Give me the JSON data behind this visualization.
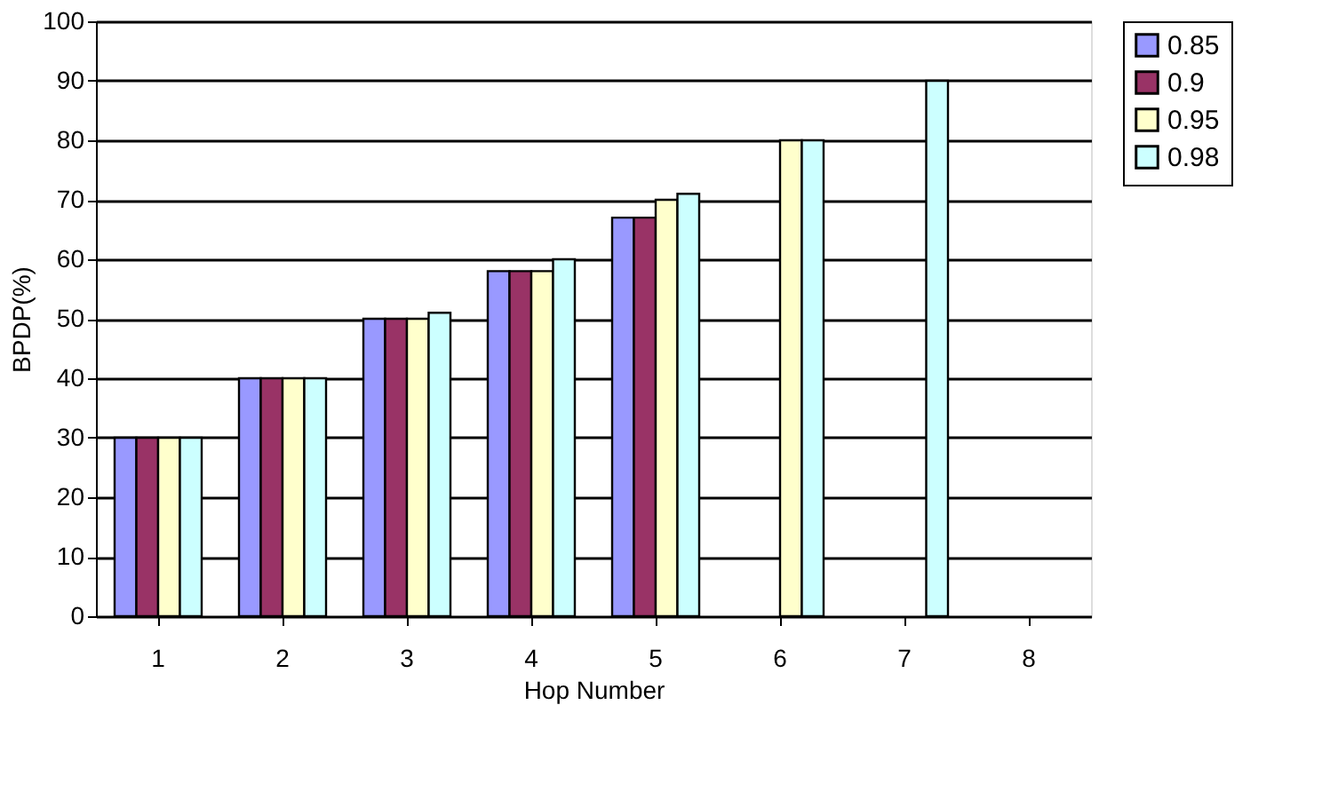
{
  "chart_data": {
    "type": "bar",
    "xlabel": "Hop Number",
    "ylabel": "BPDP(%)",
    "categories": [
      "1",
      "2",
      "3",
      "4",
      "5",
      "6",
      "7",
      "8"
    ],
    "series": [
      {
        "name": "0.85",
        "color": "#9999ff",
        "values": [
          30,
          40,
          50,
          58,
          67,
          null,
          null,
          null
        ]
      },
      {
        "name": "0.9",
        "color": "#993366",
        "values": [
          30,
          40,
          50,
          58,
          67,
          null,
          null,
          null
        ]
      },
      {
        "name": "0.95",
        "color": "#ffffcc",
        "values": [
          30,
          40,
          50,
          58,
          70,
          80,
          null,
          null
        ]
      },
      {
        "name": "0.98",
        "color": "#ccffff",
        "values": [
          30,
          40,
          51,
          60,
          71,
          80,
          90,
          null
        ]
      }
    ],
    "ylim": [
      0,
      100
    ],
    "yticks": [
      0,
      10,
      20,
      30,
      40,
      50,
      60,
      70,
      80,
      90,
      100
    ],
    "grid": "y",
    "legend": "right"
  }
}
